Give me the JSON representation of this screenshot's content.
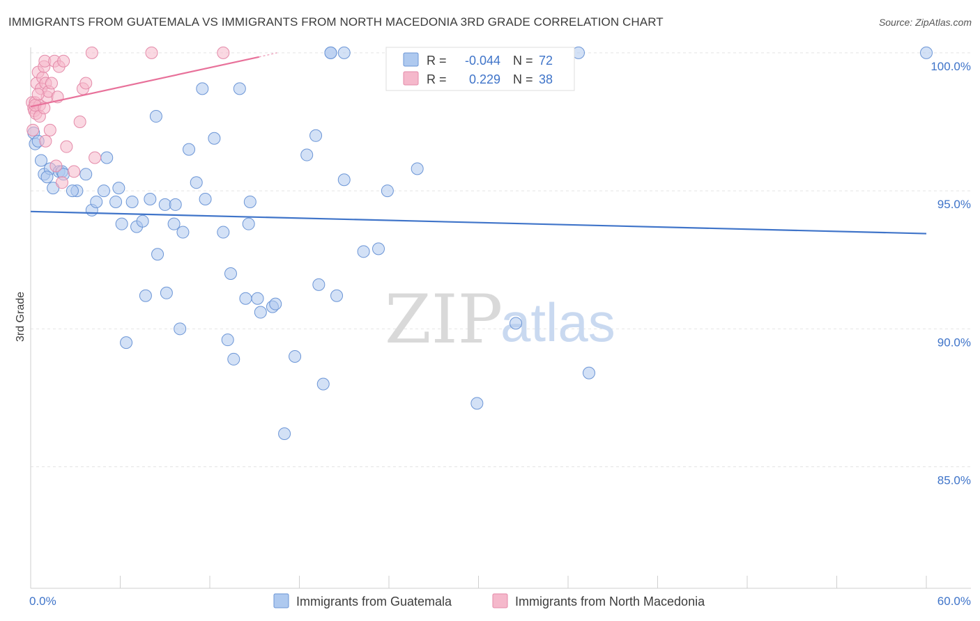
{
  "title": "IMMIGRANTS FROM GUATEMALA VS IMMIGRANTS FROM NORTH MACEDONIA 3RD GRADE CORRELATION CHART",
  "source": "Source: ZipAtlas.com",
  "watermark": {
    "zip": "ZIP",
    "atlas": "atlas"
  },
  "colors": {
    "blue": "#3f74c9",
    "blue_fill": "#aec9ef",
    "pink": "#e8719a",
    "pink_fill": "#f5b8cb"
  },
  "legend": {
    "rows": [
      {
        "r_label": "R =",
        "r_value": "-0.044",
        "n_label": "N =",
        "n_value": "72"
      },
      {
        "r_label": "R =",
        "r_value": "0.229",
        "n_label": "N =",
        "n_value": "38"
      }
    ]
  },
  "bottom_legend": {
    "guatemala": "Immigrants from Guatemala",
    "macedonia": "Immigrants from North Macedonia"
  },
  "chart_data": {
    "type": "scatter",
    "title": "IMMIGRANTS FROM GUATEMALA VS IMMIGRANTS FROM NORTH MACEDONIA 3RD GRADE CORRELATION CHART",
    "xlabel": "",
    "ylabel": "3rd Grade",
    "xlim": [
      0,
      60
    ],
    "ylim": [
      80.6,
      100.4
    ],
    "x_tick_labels": [
      "0.0%",
      "60.0%"
    ],
    "y_ticks": [
      {
        "value": 100,
        "label": "100.0%"
      },
      {
        "value": 95,
        "label": "95.0%"
      },
      {
        "value": 90,
        "label": "90.0%"
      },
      {
        "value": 85,
        "label": "85.0%"
      }
    ],
    "series": [
      {
        "name": "Immigrants from Guatemala",
        "color": "#3f74c9",
        "r": -0.044,
        "n": 72,
        "trend": [
          [
            0,
            94.25
          ],
          [
            60,
            93.45
          ]
        ],
        "points": [
          [
            0.2,
            97.1
          ],
          [
            0.3,
            96.7
          ],
          [
            0.7,
            96.1
          ],
          [
            0.9,
            95.6
          ],
          [
            1.3,
            95.8
          ],
          [
            1.5,
            95.1
          ],
          [
            1.9,
            95.7
          ],
          [
            2.1,
            95.7
          ],
          [
            2.2,
            95.6
          ],
          [
            3.1,
            95.0
          ],
          [
            3.7,
            95.6
          ],
          [
            4.1,
            94.3
          ],
          [
            4.4,
            94.6
          ],
          [
            4.9,
            95.0
          ],
          [
            5.1,
            96.2
          ],
          [
            5.7,
            94.6
          ],
          [
            5.9,
            95.1
          ],
          [
            6.1,
            93.8
          ],
          [
            6.8,
            94.6
          ],
          [
            7.1,
            93.7
          ],
          [
            7.5,
            93.9
          ],
          [
            8.0,
            94.7
          ],
          [
            8.5,
            92.7
          ],
          [
            8.4,
            97.7
          ],
          [
            9.0,
            94.5
          ],
          [
            9.6,
            93.8
          ],
          [
            9.7,
            94.5
          ],
          [
            10.2,
            93.5
          ],
          [
            10.6,
            96.5
          ],
          [
            11.1,
            95.3
          ],
          [
            11.5,
            98.7
          ],
          [
            11.7,
            94.7
          ],
          [
            12.3,
            96.9
          ],
          [
            12.9,
            93.5
          ],
          [
            13.4,
            92.0
          ],
          [
            14.0,
            98.7
          ],
          [
            14.6,
            93.8
          ],
          [
            14.7,
            94.6
          ],
          [
            7.7,
            91.2
          ],
          [
            9.1,
            91.3
          ],
          [
            10.0,
            90.0
          ],
          [
            6.4,
            89.5
          ],
          [
            13.2,
            89.6
          ],
          [
            13.6,
            88.9
          ],
          [
            14.4,
            91.1
          ],
          [
            15.2,
            91.1
          ],
          [
            15.4,
            90.6
          ],
          [
            16.2,
            90.8
          ],
          [
            16.4,
            90.9
          ],
          [
            17.0,
            86.2
          ],
          [
            17.7,
            89.0
          ],
          [
            18.5,
            96.3
          ],
          [
            19.1,
            97.0
          ],
          [
            19.3,
            91.6
          ],
          [
            19.6,
            88.0
          ],
          [
            20.1,
            100.0
          ],
          [
            20.5,
            91.2
          ],
          [
            21.0,
            100.0
          ],
          [
            21.0,
            95.4
          ],
          [
            22.3,
            92.8
          ],
          [
            23.3,
            92.9
          ],
          [
            23.9,
            95.0
          ],
          [
            25.9,
            95.8
          ],
          [
            29.9,
            87.3
          ],
          [
            32.5,
            90.2
          ],
          [
            36.7,
            100.0
          ],
          [
            37.4,
            88.4
          ],
          [
            60.0,
            100.0
          ],
          [
            0.5,
            96.8
          ],
          [
            2.8,
            95.0
          ],
          [
            1.1,
            95.5
          ],
          [
            20.1,
            100.0
          ]
        ]
      },
      {
        "name": "Immigrants from North Macedonia",
        "color": "#e8719a",
        "r": 0.229,
        "n": 38,
        "trend": [
          [
            0,
            98.05
          ],
          [
            15.3,
            99.85
          ]
        ],
        "trend_dashed": [
          [
            15.3,
            99.85
          ],
          [
            16.5,
            100.0
          ]
        ],
        "points": [
          [
            0.1,
            98.2
          ],
          [
            0.15,
            97.2
          ],
          [
            0.2,
            98.0
          ],
          [
            0.25,
            97.9
          ],
          [
            0.3,
            98.2
          ],
          [
            0.35,
            97.8
          ],
          [
            0.4,
            98.9
          ],
          [
            0.5,
            99.3
          ],
          [
            0.6,
            98.1
          ],
          [
            0.7,
            98.7
          ],
          [
            0.8,
            99.1
          ],
          [
            0.9,
            99.5
          ],
          [
            0.95,
            99.7
          ],
          [
            1.0,
            98.9
          ],
          [
            1.1,
            98.4
          ],
          [
            1.2,
            98.6
          ],
          [
            1.3,
            97.2
          ],
          [
            1.4,
            98.9
          ],
          [
            1.6,
            99.7
          ],
          [
            1.8,
            98.4
          ],
          [
            1.9,
            99.5
          ],
          [
            2.2,
            99.7
          ],
          [
            2.4,
            96.6
          ],
          [
            1.7,
            95.9
          ],
          [
            2.1,
            95.3
          ],
          [
            2.9,
            95.7
          ],
          [
            3.3,
            97.5
          ],
          [
            3.5,
            98.7
          ],
          [
            3.7,
            98.9
          ],
          [
            4.3,
            96.2
          ],
          [
            4.1,
            100.0
          ],
          [
            8.1,
            100.0
          ],
          [
            12.9,
            100.0
          ],
          [
            0.6,
            97.7
          ],
          [
            1.0,
            96.8
          ],
          [
            0.3,
            98.1
          ],
          [
            0.9,
            98.0
          ],
          [
            0.5,
            98.5
          ]
        ]
      }
    ]
  }
}
